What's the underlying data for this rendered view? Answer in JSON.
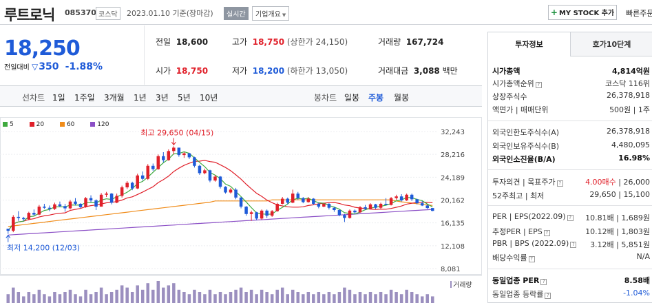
{
  "header": {
    "stock_name": "루트로닉",
    "stock_code": "085370",
    "market": "코스닥",
    "date_text": "2023.01.10 기준(장마감)",
    "realtime_label": "실시간",
    "overview_label": "기업개요",
    "my_stock_label": "MY STOCK 추가",
    "quick_order_label": "빠른주문"
  },
  "price": {
    "current": "18,250",
    "change_label": "전일대비",
    "change_value": "350",
    "change_pct": "-1.88%"
  },
  "quote": {
    "prev_close": {
      "label": "전일",
      "value": "18,600"
    },
    "high": {
      "label": "고가",
      "value": "18,750",
      "limit": "(상한가 24,150)"
    },
    "volume": {
      "label": "거래량",
      "value": "167,724"
    },
    "open": {
      "label": "시가",
      "value": "18,750"
    },
    "low": {
      "label": "저가",
      "value": "18,200",
      "limit": "(하한가 13,050)"
    },
    "amount": {
      "label": "거래대금",
      "value": "3,088",
      "unit": "백만"
    }
  },
  "periods": {
    "line_label": "선차트",
    "line_items": [
      "1일",
      "1주일",
      "3개월",
      "1년",
      "3년",
      "5년",
      "10년"
    ],
    "candle_label": "봉차트",
    "candle_items": [
      "일봉",
      "주봉",
      "월봉"
    ],
    "active_candle": "주봉"
  },
  "chart_data": {
    "type": "candlestick",
    "title": "",
    "legend": [
      {
        "name": "5",
        "color": "#3faa3f"
      },
      {
        "name": "20",
        "color": "#e0202a"
      },
      {
        "name": "60",
        "color": "#f08c1a"
      },
      {
        "name": "120",
        "color": "#8b4fc6"
      }
    ],
    "y_ticks": [
      "32,243",
      "28,216",
      "24,189",
      "20,162",
      "16,135",
      "12,108",
      "8,081"
    ],
    "ylim": [
      8081,
      32243
    ],
    "max_annotation": "최고 29,650 (04/15)",
    "min_annotation": "최저 14,200 (12/03)",
    "volume_label": "거래량",
    "colors": {
      "up": "#e0202a",
      "down": "#1f5bd8"
    },
    "candles": [
      [
        15100,
        15100,
        14200,
        14750
      ],
      [
        14750,
        17500,
        14500,
        17200
      ],
      [
        17200,
        18200,
        16500,
        17000
      ],
      [
        17000,
        17200,
        16500,
        16800
      ],
      [
        16800,
        18100,
        16600,
        17900
      ],
      [
        17900,
        18500,
        17400,
        17600
      ],
      [
        17600,
        19300,
        17500,
        19000
      ],
      [
        19000,
        19500,
        18600,
        18800
      ],
      [
        18800,
        19200,
        18200,
        18600
      ],
      [
        18600,
        19700,
        18400,
        19400
      ],
      [
        19400,
        19900,
        18900,
        19100
      ],
      [
        19100,
        19500,
        18100,
        18700
      ],
      [
        18700,
        20200,
        18500,
        19900
      ],
      [
        19900,
        20500,
        19200,
        19500
      ],
      [
        19500,
        19600,
        18700,
        18900
      ],
      [
        18900,
        20700,
        18800,
        20500
      ],
      [
        20500,
        21000,
        19800,
        20100
      ],
      [
        20100,
        20300,
        18400,
        19000
      ],
      [
        19000,
        21400,
        19000,
        21100
      ],
      [
        21100,
        21600,
        20700,
        21300
      ],
      [
        21300,
        21400,
        19400,
        19700
      ],
      [
        19700,
        21300,
        19600,
        20900
      ],
      [
        20900,
        22700,
        20600,
        22400
      ],
      [
        22400,
        23500,
        22100,
        23200
      ],
      [
        23200,
        23400,
        21900,
        22200
      ],
      [
        22200,
        24800,
        22100,
        24500
      ],
      [
        24500,
        25200,
        23600,
        23900
      ],
      [
        23900,
        26500,
        23700,
        26200
      ],
      [
        26200,
        26600,
        25300,
        25600
      ],
      [
        25600,
        28200,
        25500,
        27900
      ],
      [
        27900,
        28600,
        26800,
        27200
      ],
      [
        27200,
        29100,
        27100,
        28800
      ],
      [
        28800,
        29650,
        28200,
        29400
      ],
      [
        29400,
        29400,
        27800,
        28100
      ],
      [
        28100,
        28600,
        27600,
        28400
      ],
      [
        28400,
        28500,
        27400,
        27700
      ],
      [
        27700,
        27800,
        25900,
        26200
      ],
      [
        26200,
        26400,
        24600,
        24900
      ],
      [
        24900,
        25700,
        24700,
        25400
      ],
      [
        25400,
        25500,
        23300,
        23600
      ],
      [
        23600,
        24600,
        23400,
        24300
      ],
      [
        24300,
        24400,
        22200,
        22500
      ],
      [
        22500,
        22600,
        21300,
        21500
      ],
      [
        21500,
        22300,
        21300,
        22000
      ],
      [
        22000,
        22300,
        20300,
        20600
      ],
      [
        20600,
        20700,
        18700,
        19000
      ],
      [
        19000,
        19100,
        17400,
        17700
      ],
      [
        17700,
        18300,
        16500,
        18000
      ],
      [
        18000,
        18100,
        16600,
        16900
      ],
      [
        16900,
        18500,
        16700,
        18300
      ],
      [
        18300,
        18500,
        17000,
        17400
      ],
      [
        17400,
        18400,
        17200,
        18200
      ],
      [
        18200,
        19700,
        18100,
        19500
      ],
      [
        19500,
        20700,
        19400,
        20400
      ],
      [
        20400,
        20600,
        19400,
        19700
      ],
      [
        19700,
        22000,
        19600,
        21300
      ],
      [
        21300,
        21600,
        20200,
        20500
      ],
      [
        20500,
        20700,
        19600,
        19800
      ],
      [
        19800,
        20700,
        19700,
        20400
      ],
      [
        20400,
        20500,
        19300,
        19500
      ],
      [
        19500,
        19700,
        18700,
        19000
      ],
      [
        19000,
        19700,
        18900,
        19500
      ],
      [
        19500,
        19600,
        18500,
        18800
      ],
      [
        18800,
        19000,
        18100,
        18400
      ],
      [
        18400,
        18500,
        17300,
        17500
      ],
      [
        17500,
        17700,
        16300,
        17000
      ],
      [
        17000,
        18500,
        16900,
        18300
      ],
      [
        18300,
        18500,
        17700,
        18000
      ],
      [
        18000,
        19100,
        17900,
        18900
      ],
      [
        18900,
        19300,
        18400,
        18600
      ],
      [
        18600,
        19600,
        18500,
        19400
      ],
      [
        19400,
        19500,
        18600,
        18800
      ],
      [
        18800,
        19700,
        18600,
        19500
      ],
      [
        19500,
        20500,
        19300,
        19300
      ],
      [
        19300,
        20700,
        19200,
        20500
      ],
      [
        20500,
        21100,
        20200,
        20800
      ],
      [
        20800,
        21200,
        19900,
        20100
      ],
      [
        20100,
        21300,
        20000,
        21100
      ],
      [
        21100,
        21300,
        20000,
        20300
      ],
      [
        20300,
        20400,
        19400,
        19600
      ],
      [
        19600,
        20000,
        19100,
        19200
      ],
      [
        19200,
        19400,
        18600,
        18750
      ],
      [
        18750,
        18750,
        18200,
        18250
      ]
    ],
    "volume": [
      4,
      7,
      5,
      3,
      5,
      4,
      6,
      4,
      3,
      5,
      4,
      5,
      6,
      4,
      3,
      6,
      4,
      5,
      7,
      4,
      5,
      6,
      8,
      7,
      5,
      8,
      6,
      9,
      6,
      10,
      7,
      8,
      9,
      6,
      5,
      4,
      6,
      5,
      4,
      6,
      4,
      5,
      4,
      5,
      6,
      7,
      5,
      6,
      4,
      6,
      5,
      4,
      6,
      7,
      4,
      6,
      5,
      4,
      5,
      4,
      5,
      4,
      5,
      4,
      5,
      7,
      6,
      4,
      5,
      4,
      5,
      4,
      5,
      4,
      6,
      5,
      4,
      6,
      5,
      4,
      3,
      4,
      3
    ]
  },
  "invest": {
    "tabs": [
      "투자정보",
      "호가10단계"
    ],
    "market_cap_label": "시가총액",
    "market_cap_value": "4,814억원",
    "cap_rank_label": "시가총액순위",
    "cap_rank_value": "코스닥 116위",
    "shares_label": "상장주식수",
    "shares_value": "26,378,918",
    "par_label": "액면가 | 매매단위",
    "par_value": "500원 | 1주",
    "foreign_limit_label": "외국인한도주식수(A)",
    "foreign_limit_value": "26,378,918",
    "foreign_hold_label": "외국인보유주식수(B)",
    "foreign_hold_value": "4,480,095",
    "foreign_ratio_label": "외국인소진율(B/A)",
    "foreign_ratio_value": "16.98%",
    "opinion_label": "투자의견 | 목표주가",
    "opinion_value": "4.00매수",
    "target_value": "26,000",
    "week52_label": "52주최고 | 최저",
    "week52_value": "29,650 | 15,100",
    "per_label": "PER | EPS(2022.09)",
    "per_value": "10.81배 | 1,689원",
    "est_per_label": "추정PER | EPS",
    "est_per_value": "10.12배 | 1,803원",
    "pbr_label": "PBR | BPS (2022.09)",
    "pbr_value": "3.12배 | 5,851원",
    "div_label": "배당수익률",
    "div_value": "N/A",
    "industry_per_label": "동일업종 PER",
    "industry_per_value": "8.58배",
    "industry_rate_label": "동일업종 등락률",
    "industry_rate_value": "-1.04%"
  }
}
